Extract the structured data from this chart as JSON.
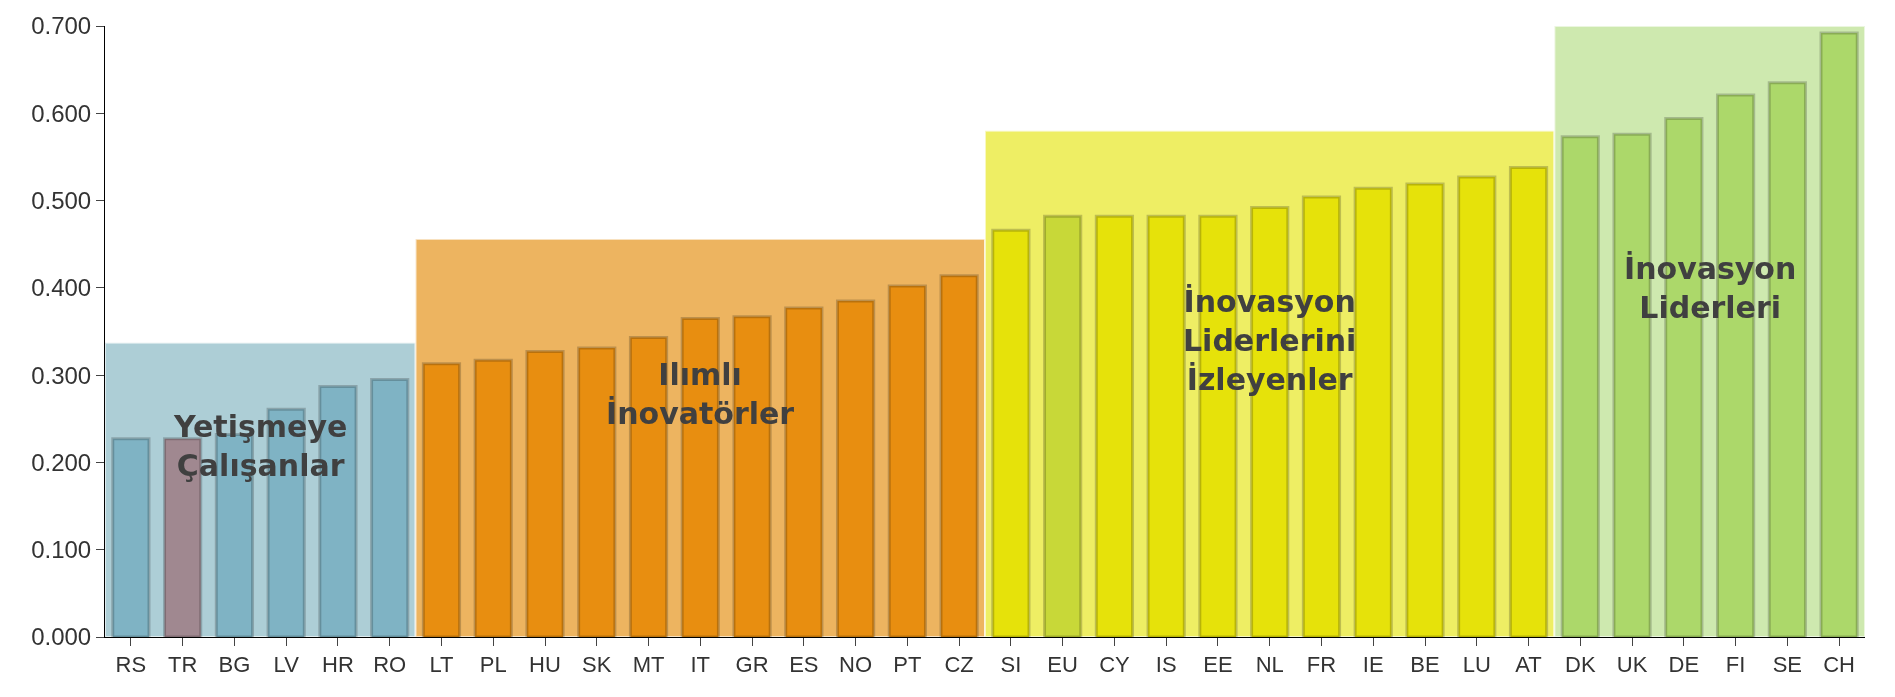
{
  "chart_data": {
    "type": "bar",
    "categories": [
      "RS",
      "TR",
      "BG",
      "LV",
      "HR",
      "RO",
      "LT",
      "PL",
      "HU",
      "SK",
      "MT",
      "IT",
      "GR",
      "ES",
      "NO",
      "PT",
      "CZ",
      "SI",
      "EU",
      "CY",
      "IS",
      "EE",
      "NL",
      "FR",
      "IE",
      "BE",
      "LU",
      "AT",
      "DK",
      "UK",
      "DE",
      "FI",
      "SE",
      "CH"
    ],
    "values": [
      0.227,
      0.227,
      0.232,
      0.261,
      0.287,
      0.295,
      0.313,
      0.317,
      0.327,
      0.331,
      0.343,
      0.365,
      0.367,
      0.377,
      0.385,
      0.402,
      0.414,
      0.466,
      0.482,
      0.482,
      0.482,
      0.482,
      0.492,
      0.504,
      0.514,
      0.519,
      0.527,
      0.538,
      0.573,
      0.576,
      0.594,
      0.621,
      0.635,
      0.692
    ],
    "colors": [
      "#7fb3c4",
      "#a08890",
      "#7fb3c4",
      "#7fb3c4",
      "#7fb3c4",
      "#7fb3c4",
      "#e88e10",
      "#e88e10",
      "#e88e10",
      "#e88e10",
      "#e88e10",
      "#e88e10",
      "#e88e10",
      "#e88e10",
      "#e88e10",
      "#e88e10",
      "#e88e10",
      "#e6e20a",
      "#c8d838",
      "#e6e20a",
      "#e6e20a",
      "#e6e20a",
      "#e6e20a",
      "#e6e20a",
      "#e6e20a",
      "#e6e20a",
      "#e6e20a",
      "#e6e20a",
      "#acd86a",
      "#acd86a",
      "#acd86a",
      "#acd86a",
      "#acd86a",
      "#acd86a"
    ],
    "ylim": [
      0,
      0.7
    ],
    "yticks": [
      {
        "value": 0,
        "label": "0.000"
      },
      {
        "value": 0.1,
        "label": "0.100"
      },
      {
        "value": 0.2,
        "label": "0.200"
      },
      {
        "value": 0.3,
        "label": "0.300"
      },
      {
        "value": 0.4,
        "label": "0.400"
      },
      {
        "value": 0.5,
        "label": "0.500"
      },
      {
        "value": 0.6,
        "label": "0.600"
      },
      {
        "value": 0.7,
        "label": "0.700"
      }
    ],
    "bands": [
      {
        "axis": "x",
        "from": "RS",
        "to": "RO",
        "label": "Yetişmeye\nÇalışanlar",
        "color": "#9fc6d0"
      },
      {
        "axis": "x",
        "from": "LT",
        "to": "CZ",
        "label": "Ilımlı\nİnovatörler",
        "color": "#eaa845"
      },
      {
        "axis": "x",
        "from": "SI",
        "to": "AT",
        "label": "İnovasyon\nLiderlerini\nİzleyenler",
        "color": "#ecec4a"
      },
      {
        "axis": "x",
        "from": "DK",
        "to": "CH",
        "label": "İnovasyon\nLiderleri",
        "color": "#c6e6a2"
      }
    ],
    "grid": false
  }
}
